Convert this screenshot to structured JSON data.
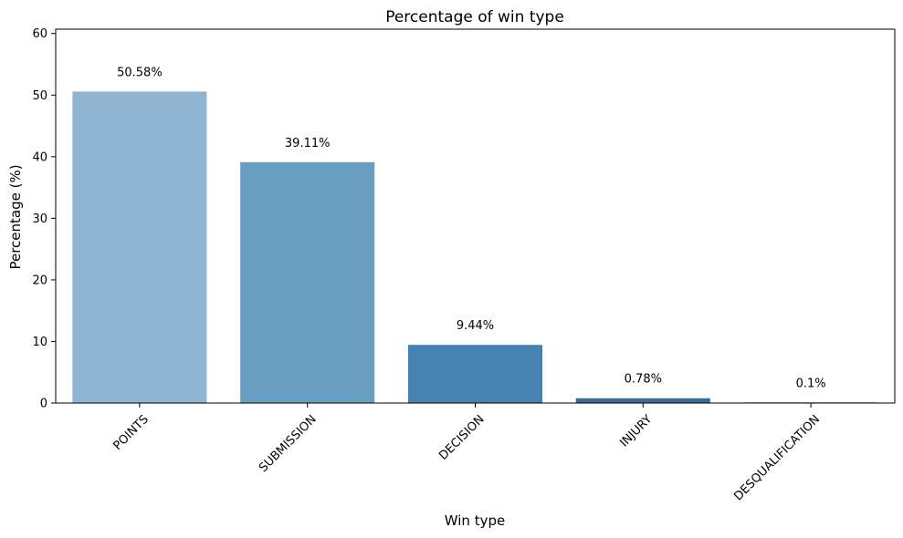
{
  "chart_data": {
    "type": "bar",
    "title": "Percentage of win type",
    "xlabel": "Win type",
    "ylabel": "Percentage (%)",
    "categories": [
      "POINTS",
      "SUBMISSION",
      "DECISION",
      "INJURY",
      "DESQUALIFICATION"
    ],
    "values": [
      50.58,
      39.11,
      9.44,
      0.78,
      0.1
    ],
    "data_labels": [
      "50.58%",
      "39.11%",
      "9.44%",
      "0.78%",
      "0.1%"
    ],
    "ylim": [
      0,
      60.7
    ],
    "yticks": [
      0,
      10,
      20,
      30,
      40,
      50,
      60
    ],
    "colors": [
      "#8fb5d2",
      "#6a9ec1",
      "#4682b1",
      "#3b6c93",
      "#2d5575"
    ],
    "grid": false,
    "legend": "none"
  }
}
